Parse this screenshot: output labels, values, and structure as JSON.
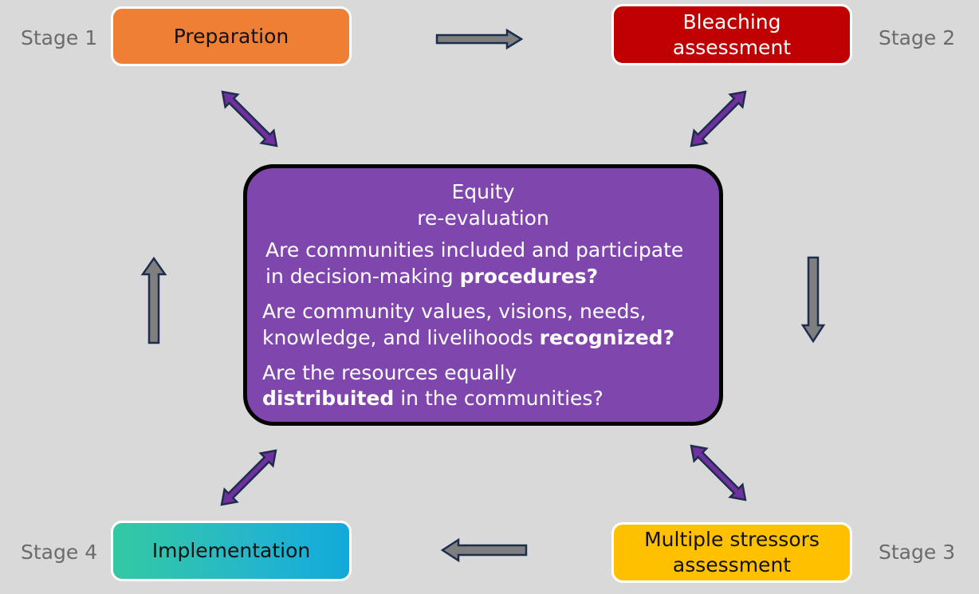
{
  "stages": {
    "stage1": {
      "label": "Stage 1",
      "box": "Preparation",
      "color": "#ef7f35"
    },
    "stage2": {
      "label": "Stage 2",
      "box_line1": "Bleaching",
      "box_line2": "assessment",
      "color": "#c00000"
    },
    "stage3": {
      "label": "Stage 3",
      "box_line1": "Multiple stressors",
      "box_line2": "assessment",
      "color": "#ffc000"
    },
    "stage4": {
      "label": "Stage 4",
      "box": "Implementation",
      "color": "#26b8c8"
    }
  },
  "center": {
    "title_line1": "Equity",
    "title_line2": "re-evaluation",
    "q1_line1": "Are communities included and participate",
    "q1_line2_pre": "in decision-making ",
    "q1_line2_bold": "procedures?",
    "q2_line1": "Are community values, visions, needs,",
    "q2_line2_pre": "knowledge, and livelihoods ",
    "q2_line2_bold": "recognized?",
    "q3_line1": "Are the resources equally",
    "q3_line2_bold": "distribuited",
    "q3_line2_post": " in the communities?",
    "color": "#7f47ad"
  },
  "arrow_colors": {
    "flow": "#7f7f7f",
    "link": "#7030a0",
    "outline": "#1f2d4d"
  }
}
